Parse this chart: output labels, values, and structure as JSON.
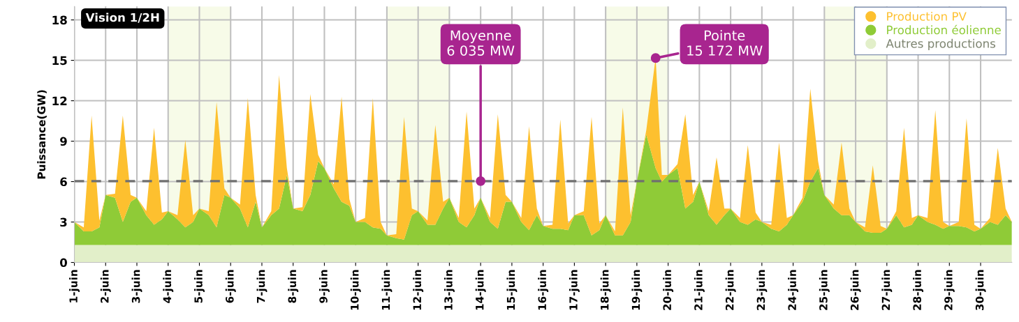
{
  "chart_data": {
    "type": "area",
    "stacked": true,
    "ylabel": "Puissance(GW)",
    "x": [
      1.0,
      1.3,
      1.55,
      1.8,
      2.0,
      2.3,
      2.55,
      2.8,
      3.0,
      3.3,
      3.55,
      3.8,
      4.0,
      4.3,
      4.55,
      4.8,
      5.0,
      5.3,
      5.55,
      5.8,
      6.0,
      6.3,
      6.55,
      6.8,
      7.0,
      7.3,
      7.55,
      7.8,
      8.0,
      8.3,
      8.55,
      8.8,
      9.0,
      9.3,
      9.55,
      9.8,
      10.0,
      10.3,
      10.55,
      10.8,
      11.0,
      11.3,
      11.55,
      11.8,
      12.0,
      12.3,
      12.55,
      12.8,
      13.0,
      13.3,
      13.55,
      13.8,
      14.0,
      14.3,
      14.55,
      14.8,
      15.0,
      15.3,
      15.55,
      15.8,
      16.0,
      16.3,
      16.55,
      16.8,
      17.0,
      17.3,
      17.55,
      17.8,
      18.0,
      18.3,
      18.55,
      18.8,
      19.0,
      19.3,
      19.6,
      19.8,
      20.0,
      20.3,
      20.55,
      20.8,
      21.0,
      21.3,
      21.55,
      21.8,
      22.0,
      22.3,
      22.55,
      22.8,
      23.0,
      23.3,
      23.55,
      23.8,
      24.0,
      24.3,
      24.55,
      24.8,
      25.0,
      25.3,
      25.55,
      25.8,
      26.0,
      26.3,
      26.55,
      26.8,
      27.0,
      27.3,
      27.55,
      27.8,
      28.0,
      28.3,
      28.55,
      28.8,
      29.0,
      29.3,
      29.55,
      29.8,
      30.0,
      30.3,
      30.55,
      30.8,
      31.0
    ],
    "series": [
      {
        "name": "Autres productions",
        "color": "#e2efc9",
        "values": [
          1.3,
          1.3,
          1.3,
          1.3,
          1.3,
          1.3,
          1.3,
          1.3,
          1.3,
          1.3,
          1.3,
          1.3,
          1.3,
          1.3,
          1.3,
          1.3,
          1.3,
          1.3,
          1.3,
          1.3,
          1.3,
          1.3,
          1.3,
          1.3,
          1.3,
          1.3,
          1.3,
          1.3,
          1.3,
          1.3,
          1.3,
          1.3,
          1.3,
          1.3,
          1.3,
          1.3,
          1.3,
          1.3,
          1.3,
          1.3,
          1.3,
          1.3,
          1.3,
          1.3,
          1.3,
          1.3,
          1.3,
          1.3,
          1.3,
          1.3,
          1.3,
          1.3,
          1.3,
          1.3,
          1.3,
          1.3,
          1.3,
          1.3,
          1.3,
          1.3,
          1.3,
          1.3,
          1.3,
          1.3,
          1.3,
          1.3,
          1.3,
          1.3,
          1.3,
          1.3,
          1.3,
          1.3,
          1.3,
          1.3,
          1.3,
          1.3,
          1.3,
          1.3,
          1.3,
          1.3,
          1.3,
          1.3,
          1.3,
          1.3,
          1.3,
          1.3,
          1.3,
          1.3,
          1.3,
          1.3,
          1.3,
          1.3,
          1.3,
          1.3,
          1.3,
          1.3,
          1.3,
          1.3,
          1.3,
          1.3,
          1.3,
          1.3,
          1.3,
          1.3,
          1.3,
          1.3,
          1.3,
          1.3,
          1.3,
          1.3,
          1.3,
          1.3,
          1.3,
          1.3,
          1.3,
          1.3,
          1.3,
          1.3,
          1.3,
          1.3,
          1.3
        ]
      },
      {
        "name": "Production éolienne",
        "color": "#8fcb37",
        "values": [
          1.7,
          1.0,
          1.0,
          1.3,
          3.7,
          3.5,
          1.7,
          3.2,
          3.5,
          2.2,
          1.5,
          1.9,
          2.5,
          1.9,
          1.3,
          1.7,
          2.7,
          2.2,
          1.3,
          3.7,
          3.5,
          2.7,
          1.3,
          3.2,
          1.3,
          2.2,
          2.7,
          5.2,
          2.7,
          2.5,
          3.7,
          6.2,
          5.7,
          4.2,
          3.2,
          2.9,
          1.7,
          1.7,
          1.3,
          1.2,
          0.7,
          0.5,
          0.4,
          2.2,
          2.5,
          1.5,
          1.5,
          2.7,
          3.5,
          1.7,
          1.3,
          2.2,
          3.5,
          1.7,
          1.2,
          3.2,
          3.2,
          1.7,
          1.1,
          2.2,
          1.4,
          1.2,
          1.2,
          1.1,
          2.2,
          2.2,
          0.7,
          1.1,
          2.2,
          0.7,
          0.7,
          1.7,
          4.7,
          8.2,
          5.7,
          4.7,
          5.2,
          5.7,
          2.7,
          3.2,
          4.7,
          2.2,
          1.5,
          2.2,
          2.7,
          1.7,
          1.5,
          1.9,
          1.7,
          1.2,
          1.0,
          1.5,
          2.2,
          3.2,
          4.7,
          5.7,
          3.7,
          2.7,
          2.2,
          2.2,
          1.7,
          1.0,
          0.9,
          0.9,
          1.2,
          2.2,
          1.3,
          1.5,
          2.2,
          1.7,
          1.5,
          1.2,
          1.4,
          1.4,
          1.3,
          1.0,
          1.2,
          1.7,
          1.5,
          2.2,
          1.7
        ]
      },
      {
        "name": "Production PV",
        "color": "#fdc02f",
        "values": [
          0,
          0.3,
          8.6,
          0.5,
          0,
          0.3,
          7.9,
          0.5,
          0,
          0.3,
          7.2,
          0.5,
          0,
          0.3,
          6.5,
          0.5,
          0,
          0.3,
          9.3,
          0.5,
          0,
          0.3,
          9.6,
          0.5,
          0,
          0.3,
          9.9,
          0.5,
          0,
          0.3,
          7.5,
          0.5,
          0,
          0.3,
          7.8,
          0.5,
          0,
          0.3,
          9.6,
          0.5,
          0,
          0.3,
          9.1,
          0.5,
          0,
          0.3,
          7.4,
          0.5,
          0,
          0.3,
          8.6,
          0.5,
          0,
          0.3,
          8.5,
          0.5,
          0,
          0.3,
          7.7,
          0.5,
          0,
          0.3,
          8.1,
          0.5,
          0,
          0.3,
          8.8,
          0.5,
          0,
          0.3,
          9.5,
          0.5,
          0,
          0.3,
          8.2,
          0.5,
          0,
          0.3,
          7.0,
          0.5,
          0,
          0.3,
          5.0,
          0.5,
          0,
          0.3,
          5.9,
          0.5,
          0,
          0.3,
          6.6,
          0.5,
          0,
          0.3,
          6.9,
          0.5,
          0,
          0.3,
          5.4,
          0.5,
          0,
          0.3,
          5.0,
          0.5,
          0,
          0.3,
          7.4,
          0.5,
          0,
          0.3,
          8.5,
          0.5,
          0,
          0.3,
          8.1,
          0.5,
          0,
          0.3,
          5.7,
          0.5,
          0
        ]
      }
    ],
    "xlim": [
      1,
      31
    ],
    "xticks": [
      {
        "value": 1,
        "label": "1-juin"
      },
      {
        "value": 2,
        "label": "2-juin"
      },
      {
        "value": 3,
        "label": "3-juin"
      },
      {
        "value": 4,
        "label": "4-juin"
      },
      {
        "value": 5,
        "label": "5-juin"
      },
      {
        "value": 6,
        "label": "6-juin"
      },
      {
        "value": 7,
        "label": "7-juin"
      },
      {
        "value": 8,
        "label": "8-juin"
      },
      {
        "value": 9,
        "label": "9-juin"
      },
      {
        "value": 10,
        "label": "10-juin"
      },
      {
        "value": 11,
        "label": "11-juin"
      },
      {
        "value": 12,
        "label": "12-juin"
      },
      {
        "value": 13,
        "label": "13-juin"
      },
      {
        "value": 14,
        "label": "14-juin"
      },
      {
        "value": 15,
        "label": "15-juin"
      },
      {
        "value": 16,
        "label": "16-juin"
      },
      {
        "value": 17,
        "label": "17-juin"
      },
      {
        "value": 18,
        "label": "18-juin"
      },
      {
        "value": 19,
        "label": "19-juin"
      },
      {
        "value": 20,
        "label": "20-juin"
      },
      {
        "value": 21,
        "label": "21-juin"
      },
      {
        "value": 22,
        "label": "22-juin"
      },
      {
        "value": 23,
        "label": "23-juin"
      },
      {
        "value": 24,
        "label": "24-juin"
      },
      {
        "value": 25,
        "label": "25-juin"
      },
      {
        "value": 26,
        "label": "26-juin"
      },
      {
        "value": 27,
        "label": "27-juin"
      },
      {
        "value": 28,
        "label": "28-juin"
      },
      {
        "value": 29,
        "label": "29-juin"
      },
      {
        "value": 30,
        "label": "30-juin"
      }
    ],
    "ylim": [
      0,
      19
    ],
    "yticks": [
      0,
      3,
      6,
      9,
      12,
      15,
      18
    ],
    "grid": true,
    "legend": "top right",
    "ref_lines": [
      {
        "axis": "y",
        "value": 6.035,
        "color": "#707070",
        "line_style": "dashed"
      }
    ],
    "bands": [
      {
        "axis": "x",
        "from": 4,
        "to": 6,
        "color": "#f7fbe8"
      },
      {
        "axis": "x",
        "from": 11,
        "to": 13,
        "color": "#f7fbe8"
      },
      {
        "axis": "x",
        "from": 18,
        "to": 20,
        "color": "#f7fbe8"
      },
      {
        "axis": "x",
        "from": 25,
        "to": 27,
        "color": "#f7fbe8"
      }
    ],
    "annotations": [
      "Vision 1/2H",
      {
        "text": "Moyenne\n6 035 MW",
        "x": 14.0,
        "y": 6.035
      },
      {
        "text": "Pointe\n15 172 MW",
        "x": 19.6,
        "y": 15.172
      }
    ]
  }
}
